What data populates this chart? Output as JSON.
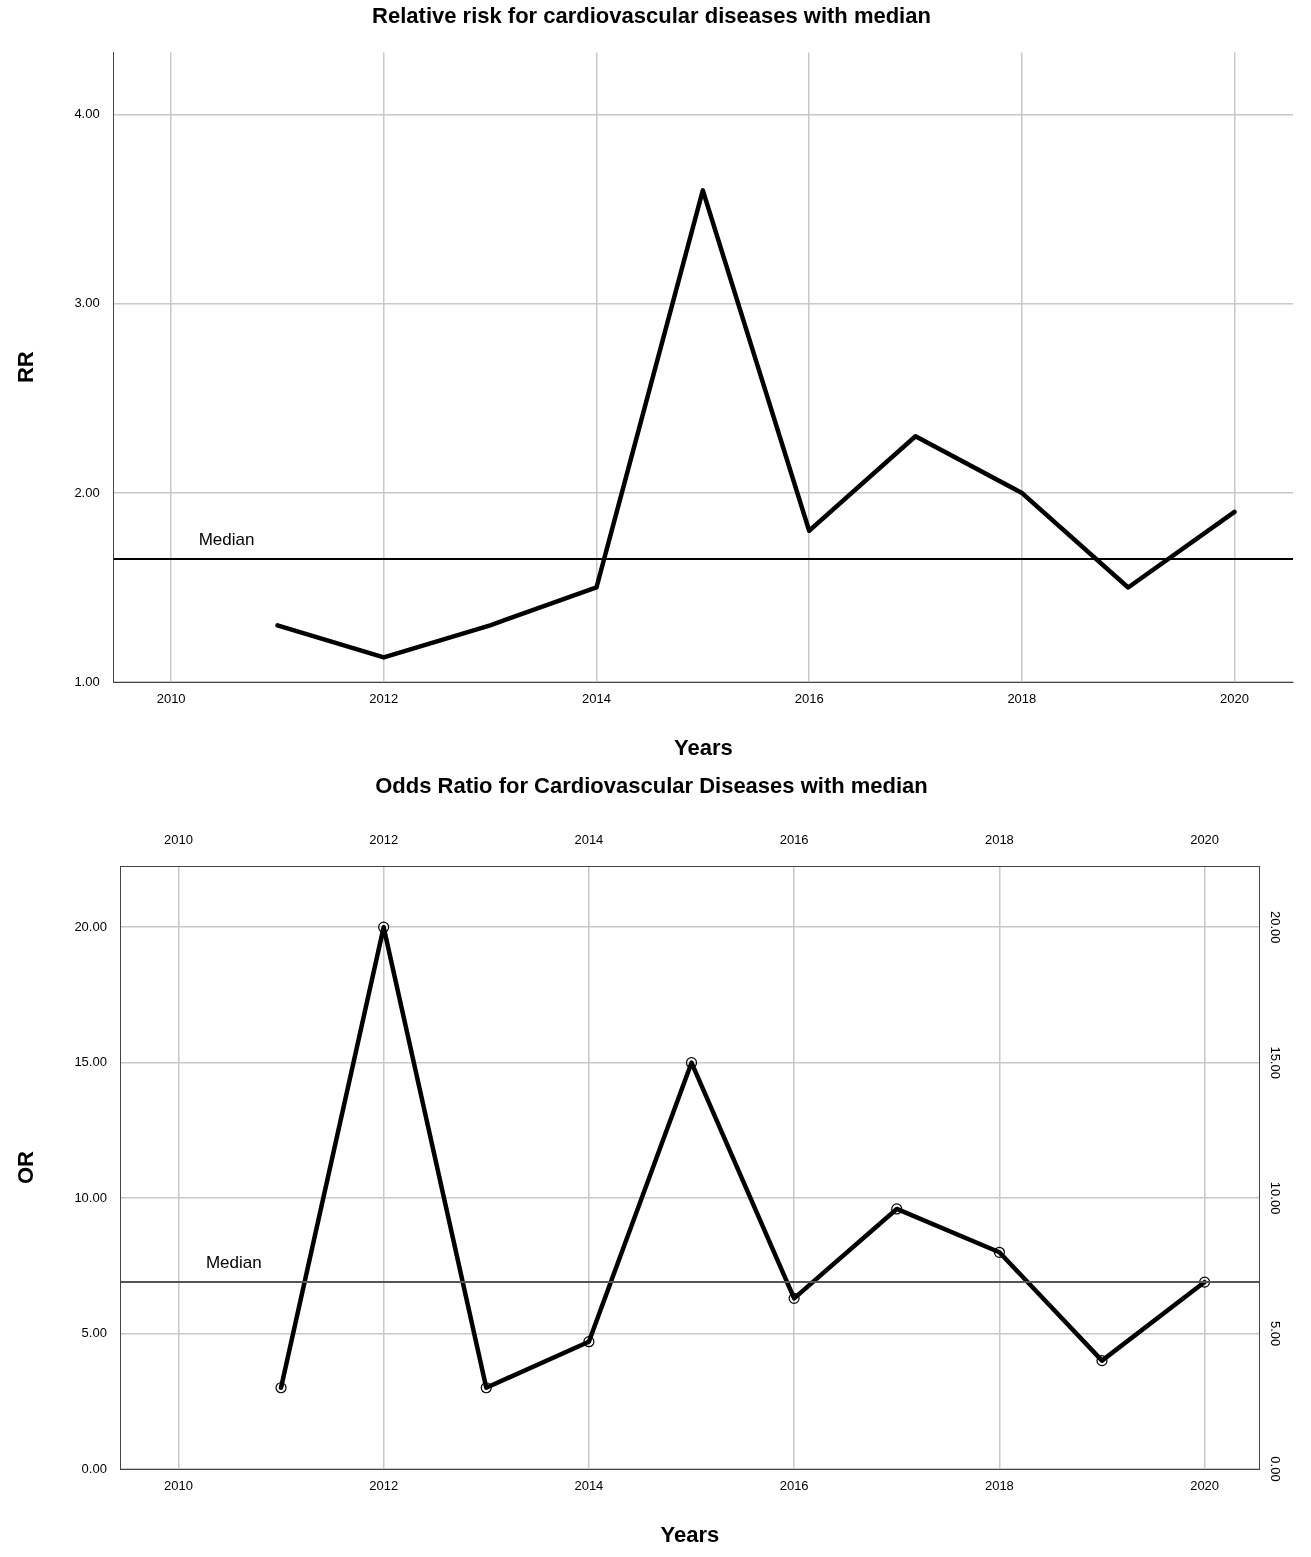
{
  "chart_data": [
    {
      "type": "line",
      "title": "Relative risk for cardiovascular diseases with median",
      "xlabel": "Years",
      "ylabel": "RR",
      "x": [
        2011,
        2012,
        2013,
        2014,
        2015,
        2016,
        2017,
        2018,
        2019,
        2020
      ],
      "series": [
        {
          "color": "#000000",
          "values": [
            1.3,
            1.13,
            1.3,
            1.5,
            3.6,
            1.8,
            2.3,
            2.0,
            1.5,
            1.9
          ]
        }
      ],
      "xlim": [
        2009.46,
        2020.55
      ],
      "xticks": [
        2010,
        2012,
        2014,
        2016,
        2018,
        2020
      ],
      "ylim": [
        1,
        4.33
      ],
      "yticks": [
        {
          "value": 1,
          "label": "1.00"
        },
        {
          "value": 2,
          "label": "2.00"
        },
        {
          "value": 3,
          "label": "3.00"
        },
        {
          "value": 4,
          "label": "4.00"
        }
      ],
      "ref_lines": [
        {
          "axis": "y",
          "value": 1.65,
          "label": "Median",
          "color": "#000000"
        }
      ],
      "grid": true,
      "legend": false,
      "marker": "none",
      "line_style": "solid"
    },
    {
      "type": "line",
      "title": "Odds Ratio for Cardiovascular Diseases with median",
      "xlabel": "Years",
      "ylabel": "OR",
      "x": [
        2011,
        2012,
        2013,
        2014,
        2015,
        2016,
        2017,
        2018,
        2019,
        2020
      ],
      "series": [
        {
          "color": "#000000",
          "values": [
            3.0,
            20.0,
            3.0,
            4.7,
            15.0,
            6.3,
            9.6,
            8.0,
            4.0,
            6.9
          ]
        }
      ],
      "xlim": [
        2009.44,
        2020.53
      ],
      "xticks": [
        2010,
        2012,
        2014,
        2016,
        2018,
        2020
      ],
      "x2lim": [
        2009.44,
        2020.53
      ],
      "x2ticks": [
        2010,
        2012,
        2014,
        2016,
        2018,
        2020
      ],
      "ylim": [
        0,
        22.26
      ],
      "yticks": [
        {
          "value": 0,
          "label": "0.00"
        },
        {
          "value": 5,
          "label": "5.00"
        },
        {
          "value": 10,
          "label": "10.00"
        },
        {
          "value": 15,
          "label": "15.00"
        },
        {
          "value": 20,
          "label": "20.00"
        }
      ],
      "y2lim": [
        0,
        22.26
      ],
      "y2ticks": [
        {
          "value": 0,
          "label": "0.00"
        },
        {
          "value": 5,
          "label": "5.00"
        },
        {
          "value": 10,
          "label": "10.00"
        },
        {
          "value": 15,
          "label": "15.00"
        },
        {
          "value": 20,
          "label": "20.00"
        }
      ],
      "ref_lines": [
        {
          "axis": "y",
          "value": 6.9,
          "label": "Median",
          "color": "#555555"
        }
      ],
      "grid": true,
      "legend": false,
      "marker": "circle",
      "line_style": "solid"
    }
  ]
}
